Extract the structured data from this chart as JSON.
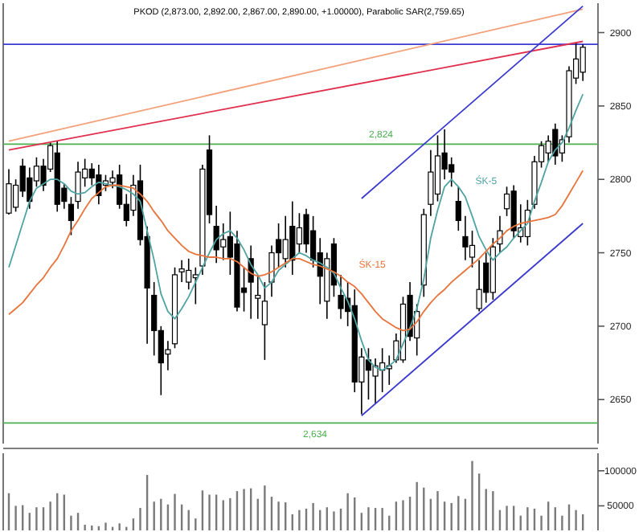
{
  "chart_data": [
    {
      "type": "candlestick",
      "title": "PKOD (2,873.00, 2,892.00, 2,867.00, 2,890.00, +1.00000), Parabolic SAR(2,759.65)",
      "categories": [
        null,
        null,
        null,
        null,
        null,
        null,
        null,
        null,
        null,
        null,
        null,
        null,
        null,
        null,
        null,
        null,
        null,
        null,
        null,
        null,
        null,
        null,
        null,
        null,
        null,
        null,
        null,
        null,
        null,
        null,
        null,
        null,
        null,
        null,
        null,
        null,
        null,
        null,
        null,
        null,
        null,
        null,
        null,
        null,
        null,
        null,
        null,
        null,
        null,
        null,
        null,
        null,
        null,
        null,
        null,
        null,
        null,
        null,
        null,
        null,
        null,
        null,
        null,
        null,
        null,
        null,
        null,
        null,
        null,
        null,
        null,
        null,
        null,
        null,
        null,
        null,
        null,
        null,
        null,
        null,
        null,
        null,
        null,
        null
      ],
      "ohlc": [
        [
          2777,
          2807,
          2776,
          2797
        ],
        [
          2781,
          2800,
          2778,
          2796
        ],
        [
          2809,
          2814,
          2788,
          2792
        ],
        [
          2801,
          2808,
          2780,
          2785
        ],
        [
          2799,
          2815,
          2795,
          2809
        ],
        [
          2809,
          2814,
          2792,
          2796
        ],
        [
          2807,
          2825,
          2805,
          2823
        ],
        [
          2818,
          2826,
          2778,
          2783
        ],
        [
          2794,
          2797,
          2780,
          2785
        ],
        [
          2783,
          2788,
          2762,
          2772
        ],
        [
          2785,
          2812,
          2780,
          2805
        ],
        [
          2801,
          2814,
          2795,
          2807
        ],
        [
          2807,
          2811,
          2796,
          2801
        ],
        [
          2803,
          2810,
          2783,
          2789
        ],
        [
          2796,
          2803,
          2792,
          2799
        ],
        [
          2798,
          2806,
          2794,
          2801
        ],
        [
          2803,
          2810,
          2780,
          2783
        ],
        [
          2783,
          2790,
          2768,
          2772
        ],
        [
          2779,
          2803,
          2775,
          2796
        ],
        [
          2799,
          2810,
          2755,
          2759
        ],
        [
          2761,
          2768,
          2688,
          2726
        ],
        [
          2721,
          2730,
          2680,
          2697
        ],
        [
          2697,
          2700,
          2653,
          2675
        ],
        [
          2681,
          2690,
          2670,
          2684
        ],
        [
          2688,
          2740,
          2685,
          2735
        ],
        [
          2737,
          2745,
          2730,
          2739
        ],
        [
          2730,
          2746,
          2725,
          2738
        ],
        [
          2733,
          2740,
          2715,
          2735
        ],
        [
          2741,
          2810,
          2735,
          2807
        ],
        [
          2820,
          2830,
          2770,
          2776
        ],
        [
          2768,
          2782,
          2743,
          2752
        ],
        [
          2754,
          2770,
          2745,
          2759
        ],
        [
          2761,
          2778,
          2735,
          2747
        ],
        [
          2756,
          2765,
          2710,
          2713
        ],
        [
          2726,
          2740,
          2710,
          2723
        ],
        [
          2746,
          2755,
          2705,
          2730
        ],
        [
          2719,
          2735,
          2705,
          2721
        ],
        [
          2701,
          2730,
          2677,
          2717
        ],
        [
          2730,
          2755,
          2720,
          2750
        ],
        [
          2759,
          2770,
          2740,
          2750
        ],
        [
          2746,
          2775,
          2740,
          2759
        ],
        [
          2768,
          2785,
          2735,
          2745
        ],
        [
          2756,
          2777,
          2750,
          2767
        ],
        [
          2776,
          2780,
          2750,
          2756
        ],
        [
          2765,
          2775,
          2740,
          2745
        ],
        [
          2750,
          2760,
          2715,
          2734
        ],
        [
          2717,
          2750,
          2705,
          2746
        ],
        [
          2756,
          2760,
          2720,
          2728
        ],
        [
          2721,
          2735,
          2705,
          2712
        ],
        [
          2719,
          2730,
          2700,
          2710
        ],
        [
          2714,
          2725,
          2655,
          2662
        ],
        [
          2662,
          2685,
          2640,
          2679
        ],
        [
          2677,
          2685,
          2650,
          2670
        ],
        [
          2666,
          2678,
          2647,
          2673
        ],
        [
          2670,
          2685,
          2655,
          2675
        ],
        [
          2671,
          2680,
          2660,
          2673
        ],
        [
          2677,
          2695,
          2675,
          2690
        ],
        [
          2677,
          2720,
          2675,
          2715
        ],
        [
          2721,
          2730,
          2690,
          2693
        ],
        [
          2692,
          2715,
          2680,
          2710
        ],
        [
          2728,
          2780,
          2720,
          2776
        ],
        [
          2783,
          2820,
          2775,
          2805
        ],
        [
          2790,
          2830,
          2785,
          2816
        ],
        [
          2818,
          2834,
          2800,
          2807
        ],
        [
          2810,
          2815,
          2795,
          2805
        ],
        [
          2785,
          2795,
          2765,
          2772
        ],
        [
          2761,
          2775,
          2745,
          2754
        ],
        [
          2747,
          2765,
          2740,
          2755
        ],
        [
          2712,
          2745,
          2710,
          2725
        ],
        [
          2743,
          2750,
          2716,
          2723
        ],
        [
          2723,
          2760,
          2718,
          2754
        ],
        [
          2756,
          2775,
          2750,
          2765
        ],
        [
          2780,
          2795,
          2775,
          2790
        ],
        [
          2792,
          2796,
          2760,
          2765
        ],
        [
          2761,
          2783,
          2757,
          2767
        ],
        [
          2761,
          2786,
          2755,
          2779
        ],
        [
          2783,
          2816,
          2780,
          2812
        ],
        [
          2812,
          2826,
          2808,
          2823
        ],
        [
          2818,
          2830,
          2812,
          2826
        ],
        [
          2834,
          2838,
          2810,
          2816
        ],
        [
          2818,
          2830,
          2812,
          2827
        ],
        [
          2829,
          2877,
          2825,
          2874
        ],
        [
          2869,
          2893,
          2865,
          2882
        ],
        [
          2873,
          2892,
          2867,
          2890
        ]
      ],
      "series": [
        {
          "name": "ŚK-5",
          "type": "line",
          "color": "#4fa3a3",
          "values": [
            2740,
            2755,
            2770,
            2785,
            2794,
            2797,
            2800,
            2800,
            2797,
            2792,
            2790,
            2791,
            2795,
            2798,
            2797,
            2796,
            2795,
            2793,
            2790,
            2785,
            2765,
            2745,
            2722,
            2710,
            2705,
            2712,
            2720,
            2730,
            2740,
            2750,
            2759,
            2763,
            2765,
            2760,
            2752,
            2742,
            2735,
            2726,
            2730,
            2738,
            2742,
            2746,
            2750,
            2748,
            2745,
            2743,
            2740,
            2736,
            2726,
            2717,
            2705,
            2690,
            2677,
            2672,
            2670,
            2673,
            2677,
            2688,
            2699,
            2712,
            2732,
            2760,
            2779,
            2795,
            2800,
            2795,
            2788,
            2775,
            2761,
            2752,
            2745,
            2750,
            2754,
            2760,
            2765,
            2770,
            2785,
            2798,
            2812,
            2820,
            2825,
            2835,
            2847,
            2858
          ]
        },
        {
          "name": "ŚK-15",
          "type": "line",
          "color": "#e8743b",
          "values": [
            2708,
            2712,
            2716,
            2722,
            2728,
            2733,
            2740,
            2746,
            2755,
            2765,
            2772,
            2780,
            2787,
            2791,
            2795,
            2796,
            2796,
            2795,
            2794,
            2790,
            2785,
            2778,
            2772,
            2765,
            2760,
            2755,
            2751,
            2749,
            2748,
            2747,
            2747,
            2746,
            2746,
            2744,
            2740,
            2736,
            2734,
            2735,
            2737,
            2740,
            2743,
            2746,
            2746,
            2744,
            2742,
            2741,
            2739,
            2737,
            2734,
            2730,
            2727,
            2722,
            2716,
            2710,
            2705,
            2702,
            2699,
            2697,
            2698,
            2703,
            2710,
            2716,
            2721,
            2725,
            2730,
            2734,
            2738,
            2742,
            2746,
            2751,
            2756,
            2760,
            2765,
            2768,
            2770,
            2771,
            2772,
            2773,
            2774,
            2776,
            2782,
            2790,
            2798,
            2806
          ]
        },
        {
          "type": "line",
          "color": "#f4a07a",
          "values": [
            2826,
            null,
            null,
            null,
            null,
            null,
            null,
            null,
            null,
            null,
            null,
            null,
            null,
            null,
            null,
            null,
            null,
            null,
            null,
            null,
            null,
            null,
            null,
            null,
            null,
            null,
            null,
            null,
            null,
            null,
            null,
            null,
            null,
            null,
            null,
            null,
            null,
            null,
            null,
            null,
            null,
            null,
            null,
            null,
            null,
            null,
            null,
            null,
            null,
            null,
            null,
            null,
            null,
            null,
            null,
            null,
            null,
            null,
            null,
            null,
            null,
            null,
            null,
            null,
            null,
            null,
            null,
            null,
            null,
            null,
            null,
            null,
            null,
            null,
            null,
            null,
            null,
            null,
            null,
            null,
            null,
            null,
            null,
            2916
          ]
        },
        {
          "type": "line",
          "color": "#e0304e",
          "values": [
            2820,
            null,
            null,
            null,
            null,
            null,
            null,
            null,
            null,
            null,
            null,
            null,
            null,
            null,
            null,
            null,
            null,
            null,
            null,
            null,
            null,
            null,
            null,
            null,
            null,
            null,
            null,
            null,
            null,
            null,
            null,
            null,
            null,
            null,
            null,
            null,
            null,
            null,
            null,
            null,
            null,
            null,
            null,
            null,
            null,
            null,
            null,
            null,
            null,
            null,
            null,
            null,
            null,
            null,
            null,
            null,
            null,
            null,
            null,
            null,
            null,
            null,
            null,
            null,
            null,
            null,
            null,
            null,
            null,
            null,
            null,
            null,
            null,
            null,
            null,
            null,
            null,
            null,
            null,
            null,
            null,
            null,
            null,
            2894
          ]
        },
        {
          "type": "line",
          "color": "#3a3ad0",
          "values": [
            null,
            null,
            null,
            null,
            null,
            null,
            null,
            null,
            null,
            null,
            null,
            null,
            null,
            null,
            null,
            null,
            null,
            null,
            null,
            null,
            null,
            null,
            null,
            null,
            null,
            null,
            null,
            null,
            null,
            null,
            null,
            null,
            null,
            null,
            null,
            null,
            null,
            null,
            null,
            null,
            null,
            null,
            null,
            null,
            null,
            null,
            null,
            null,
            null,
            null,
            null,
            2787,
            null,
            null,
            null,
            null,
            null,
            null,
            null,
            null,
            null,
            null,
            null,
            null,
            null,
            null,
            null,
            null,
            null,
            null,
            null,
            null,
            null,
            null,
            null,
            null,
            null,
            null,
            null,
            null,
            null,
            null,
            null,
            2918
          ]
        },
        {
          "type": "line",
          "color": "#3a3ad0",
          "values": [
            null,
            null,
            null,
            null,
            null,
            null,
            null,
            null,
            null,
            null,
            null,
            null,
            null,
            null,
            null,
            null,
            null,
            null,
            null,
            null,
            null,
            null,
            null,
            null,
            null,
            null,
            null,
            null,
            null,
            null,
            null,
            null,
            null,
            null,
            null,
            null,
            null,
            null,
            null,
            null,
            null,
            null,
            null,
            null,
            null,
            null,
            null,
            null,
            null,
            null,
            null,
            2639,
            null,
            null,
            null,
            null,
            null,
            null,
            null,
            null,
            null,
            null,
            null,
            null,
            null,
            null,
            null,
            null,
            null,
            null,
            null,
            null,
            null,
            null,
            null,
            null,
            null,
            null,
            null,
            null,
            null,
            null,
            null,
            2770
          ]
        }
      ],
      "ref_lines": [
        {
          "axis": "y",
          "value": 2824,
          "label": "2,824",
          "color": "#4caf50"
        },
        {
          "axis": "y",
          "value": 2634,
          "label": "2,634",
          "color": "#4caf50"
        },
        {
          "axis": "y",
          "value": 2892,
          "color": "#3a3ad0"
        }
      ],
      "ylim": [
        2620,
        2920
      ],
      "yticks": [
        2650,
        2700,
        2750,
        2800,
        2850,
        2900
      ],
      "tick_labels": "y"
    },
    {
      "type": "bar",
      "categories": [
        null,
        null,
        null,
        null,
        null,
        null,
        null,
        null,
        null,
        null,
        null,
        null,
        null,
        null,
        null,
        null,
        null,
        null,
        null,
        null,
        null,
        null,
        null,
        null,
        null,
        null,
        null,
        null,
        null,
        null,
        null,
        null,
        null,
        null,
        null,
        null,
        null,
        null,
        null,
        null,
        null,
        null,
        null,
        null,
        null,
        null,
        null,
        null,
        null,
        null,
        null,
        null,
        null,
        null,
        null,
        null,
        null,
        null,
        null,
        null,
        null,
        null,
        null,
        null,
        null,
        null,
        null,
        null,
        null,
        null,
        null,
        null,
        null,
        null,
        null,
        null,
        null,
        null,
        null,
        null,
        null,
        null,
        null,
        null
      ],
      "values": [
        68000,
        50000,
        51000,
        40000,
        48000,
        48000,
        56000,
        68000,
        66000,
        36000,
        40000,
        23000,
        22000,
        21000,
        26000,
        20000,
        25000,
        20000,
        32000,
        47000,
        94000,
        56000,
        60000,
        52000,
        67000,
        52000,
        44000,
        32000,
        72000,
        66000,
        66000,
        58000,
        61000,
        71000,
        74000,
        75000,
        60000,
        79000,
        63000,
        56000,
        55000,
        38000,
        44000,
        46000,
        54000,
        44000,
        48000,
        42000,
        46000,
        68000,
        62000,
        40000,
        48000,
        47000,
        47000,
        36000,
        56000,
        58000,
        63000,
        84000,
        76000,
        60000,
        71000,
        56000,
        54000,
        64000,
        60000,
        114000,
        96000,
        74000,
        71000,
        44000,
        50000,
        50000,
        36000,
        48000,
        46000,
        36000,
        56000,
        48000,
        36000,
        52000,
        44000,
        38000
      ],
      "color": "#7a7a7a",
      "ylim": [
        15000,
        125000
      ],
      "yticks": [
        50000,
        100000
      ],
      "tick_labels": "y"
    }
  ]
}
